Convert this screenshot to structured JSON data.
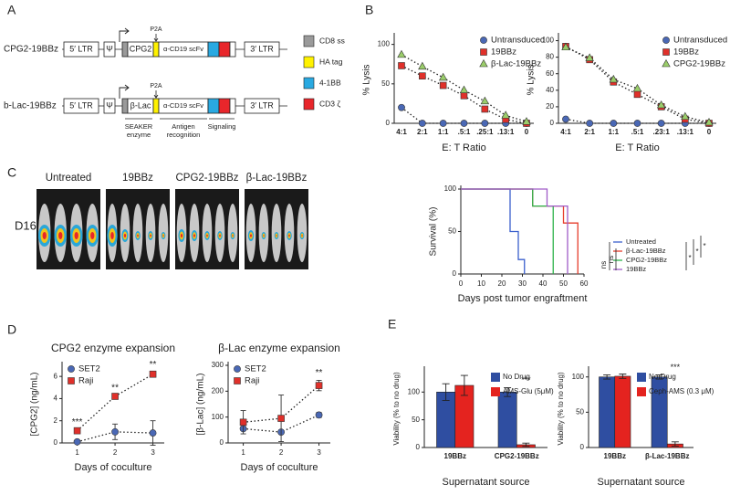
{
  "panel_labels": [
    "A",
    "B",
    "C",
    "D",
    "E"
  ],
  "construct_diagram": {
    "rows": [
      {
        "name": "CPG2-19BBz",
        "enzyme": "CPG2"
      },
      {
        "name": "b-Lac-19BBz",
        "enzyme": "β-Lac"
      }
    ],
    "elements": {
      "ltr5": "5′ LTR",
      "psi": "Ψ",
      "p2a": "P2A",
      "scfv": "α-CD19 scFv",
      "ltr3": "3′ LTR"
    },
    "legend": [
      "CD8 ss",
      "HA tag",
      "4-1BB",
      "CD3  ζ"
    ],
    "brackets": [
      [
        "SEAKER",
        "enzyme"
      ],
      [
        "Antigen",
        "recognition"
      ],
      [
        "Signaling"
      ]
    ]
  },
  "image_panel": {
    "timepoint": "D16",
    "groups": [
      "Untreated",
      "19BBz",
      "CPG2-19BBz",
      "β-Lac-19BBz"
    ]
  },
  "chart_data": [
    {
      "type": "line",
      "categories": [
        "4:1",
        "2:1",
        "1:1",
        ".5:1",
        ".25:1",
        ".13:1",
        "0"
      ],
      "series": [
        {
          "name": "Untransduced",
          "color": "#4a68b5",
          "marker": "circle",
          "values": [
            20,
            0,
            0,
            0,
            0,
            0,
            0
          ]
        },
        {
          "name": "19BBz",
          "color": "#e0302a",
          "marker": "square",
          "values": [
            73,
            60,
            48,
            35,
            18,
            5,
            0
          ]
        },
        {
          "name": "β-Lac-19BBz",
          "color": "#9acd6a",
          "marker": "triangle",
          "values": [
            87,
            72,
            58,
            42,
            28,
            10,
            2
          ]
        }
      ],
      "ylim": [
        0,
        110
      ],
      "yticks": [
        0,
        50,
        100
      ],
      "ylabel": "% Lysis",
      "xlabel": "E: T Ratio",
      "legend": "upper right"
    },
    {
      "type": "line",
      "categories": [
        "4:1",
        "2:1",
        "1:1",
        ".5:1",
        ".23:1",
        ".13:1",
        "0"
      ],
      "series": [
        {
          "name": "Untransduced",
          "color": "#4a68b5",
          "marker": "circle",
          "values": [
            5,
            0,
            0,
            0,
            0,
            0,
            0
          ]
        },
        {
          "name": "19BBz",
          "color": "#e0302a",
          "marker": "square",
          "values": [
            93,
            77,
            50,
            35,
            20,
            5,
            0
          ]
        },
        {
          "name": "CPG2-19BBz",
          "color": "#9acd6a",
          "marker": "triangle",
          "values": [
            92,
            79,
            53,
            42,
            22,
            8,
            1
          ]
        }
      ],
      "ylim": [
        0,
        105
      ],
      "yticks": [
        0,
        20,
        40,
        60,
        80,
        100
      ],
      "ylabel": "% Lysis",
      "xlabel": "E: T Ratio",
      "legend": "upper right"
    },
    {
      "type": "step",
      "series": [
        {
          "name": "Untreated",
          "color": "#3a5fcd",
          "x": [
            0,
            24,
            28,
            31
          ],
          "values": [
            100,
            50,
            17,
            0
          ]
        },
        {
          "name": "β-Lac-19BBz",
          "color": "#e63c2b",
          "x": [
            0,
            35,
            50,
            57
          ],
          "values": [
            100,
            80,
            60,
            0
          ]
        },
        {
          "name": "CPG2-19BBz",
          "color": "#2db34a",
          "x": [
            0,
            35,
            45
          ],
          "values": [
            100,
            80,
            0
          ]
        },
        {
          "name": "19BBz",
          "color": "#a05cc8",
          "x": [
            0,
            42,
            52
          ],
          "values": [
            100,
            80,
            0
          ]
        }
      ],
      "xlim": [
        0,
        60
      ],
      "xticks": [
        0,
        10,
        20,
        30,
        40,
        50,
        60
      ],
      "ylim": [
        0,
        100
      ],
      "yticks": [
        0,
        50,
        100
      ],
      "ylabel": "Survival (%)",
      "xlabel": "Days post tumor engraftment",
      "legend": "right",
      "annotations": [
        "ns",
        "ns",
        "*",
        "*",
        "*"
      ]
    },
    {
      "type": "line",
      "title": "CPG2 enzyme expansion",
      "x": [
        1,
        2,
        3
      ],
      "series": [
        {
          "name": "SET2",
          "color": "#4a68b5",
          "marker": "circle",
          "values": [
            0.1,
            1,
            0.9
          ],
          "errors": [
            0.05,
            0.7,
            1.1
          ]
        },
        {
          "name": "Raji",
          "color": "#e0302a",
          "marker": "square",
          "values": [
            1.1,
            4.2,
            6.2
          ],
          "errors": [
            0.1,
            0.1,
            0.2
          ]
        }
      ],
      "xlim": [
        0.6,
        3.3
      ],
      "xticks": [
        1,
        2,
        3
      ],
      "ylim": [
        0,
        7
      ],
      "yticks": [
        0,
        2,
        4,
        6
      ],
      "ylabel": "[CPG2] (ng/mL)",
      "xlabel": "Days of coculture",
      "legend": "upper left",
      "annotations": [
        {
          "text": "***",
          "x": 1
        },
        {
          "text": "**",
          "x": 2
        },
        {
          "text": "**",
          "x": 3
        }
      ]
    },
    {
      "type": "line",
      "title": "β-Lac enzyme expansion",
      "x": [
        1,
        2,
        3
      ],
      "series": [
        {
          "name": "SET2",
          "color": "#4a68b5",
          "marker": "circle",
          "values": [
            55,
            42,
            108
          ],
          "errors": [
            5,
            3,
            10
          ]
        },
        {
          "name": "Raji",
          "color": "#e0302a",
          "marker": "square",
          "values": [
            80,
            95,
            222
          ],
          "errors": [
            45,
            90,
            20
          ]
        }
      ],
      "xlim": [
        0.6,
        3.3
      ],
      "xticks": [
        1,
        2,
        3
      ],
      "ylim": [
        0,
        300
      ],
      "yticks": [
        0,
        100,
        200,
        300
      ],
      "ylabel": "[β-Lac] (ng/mL)",
      "xlabel": "Days of coculture",
      "legend": "upper left",
      "annotations": [
        {
          "text": "**",
          "x": 3
        }
      ]
    },
    {
      "type": "bar",
      "categories": [
        "19BBz",
        "CPG2-19BBz"
      ],
      "series": [
        {
          "name": "No Drug",
          "color": "#2f4ea1",
          "values": [
            100,
            100
          ],
          "errors": [
            15,
            8
          ]
        },
        {
          "name": "AMS-Glu (5μM)",
          "color": "#e4231f",
          "values": [
            112,
            5
          ],
          "errors": [
            18,
            3
          ]
        }
      ],
      "ylim": [
        0,
        140
      ],
      "yticks": [
        0,
        50,
        100
      ],
      "ylabel": "Viability (% to no drug)",
      "xlabel": "Supernatant source",
      "legend": "upper right",
      "annotations": [
        {
          "text": "***",
          "x": "CPG2-19BBz"
        }
      ]
    },
    {
      "type": "bar",
      "categories": [
        "19BBz",
        "β-Lac-19BBz"
      ],
      "series": [
        {
          "name": "No Drug",
          "color": "#2f4ea1",
          "values": [
            100,
            100
          ],
          "errors": [
            3,
            3
          ]
        },
        {
          "name": "Ceph-AMS (0.3 μM)",
          "color": "#e4231f",
          "values": [
            101,
            5
          ],
          "errors": [
            3,
            3
          ]
        }
      ],
      "ylim": [
        0,
        110
      ],
      "yticks": [
        0,
        50,
        100
      ],
      "ylabel": "Viability (% to no drug)",
      "xlabel": "Supernatant source",
      "legend": "upper right",
      "annotations": [
        {
          "text": "***",
          "x": "β-Lac-19BBz"
        }
      ]
    }
  ]
}
